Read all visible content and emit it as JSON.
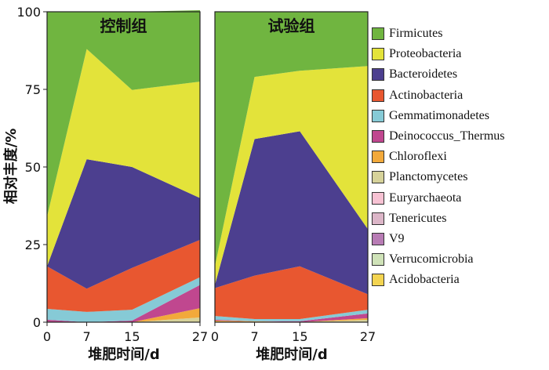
{
  "chart_data": {
    "type": "area",
    "stacked": true,
    "ylabel": "相对丰度/%",
    "ylim": [
      0,
      100
    ],
    "yticks": [
      0,
      25,
      50,
      75,
      100
    ],
    "x": [
      0,
      7,
      15,
      27
    ],
    "xticks": [
      "0",
      "7",
      "15",
      "27"
    ],
    "xlabel": "堆肥时间/d",
    "legend_position": "right",
    "grid": false,
    "series_names": [
      "Firmicutes",
      "Proteobacteria",
      "Bacteroidetes",
      "Actinobacteria",
      "Gemmatimonadetes",
      "Deinococcus_Thermus",
      "Chloroflexi",
      "Planctomycetes",
      "Euryarchaeota",
      "Tenericutes",
      "V9",
      "Verrucomicrobia",
      "Acidobacteria"
    ],
    "colors": {
      "Firmicutes": "#70b540",
      "Proteobacteria": "#e3e33a",
      "Bacteroidetes": "#4c3f8f",
      "Actinobacteria": "#e85730",
      "Gemmatimonadetes": "#86cad6",
      "Deinococcus_Thermus": "#c0478f",
      "Chloroflexi": "#f2a93b",
      "Planctomycetes": "#d6d29a",
      "Euryarchaeota": "#f7c2d3",
      "Tenericutes": "#dcb6c8",
      "V9": "#b87cb5",
      "Verrucomicrobia": "#cfe2b8",
      "Acidobacteria": "#f3d451"
    },
    "panels": [
      {
        "title": "控制组",
        "series": [
          {
            "name": "Acidobacteria",
            "values": [
              0,
              0,
              0,
              0
            ]
          },
          {
            "name": "Verrucomicrobia",
            "values": [
              0,
              0,
              0,
              0
            ]
          },
          {
            "name": "V9",
            "values": [
              0,
              0,
              0,
              0
            ]
          },
          {
            "name": "Tenericutes",
            "values": [
              0,
              0,
              0,
              0
            ]
          },
          {
            "name": "Euryarchaeota",
            "values": [
              0,
              0,
              0,
              0
            ]
          },
          {
            "name": "Planctomycetes",
            "values": [
              0,
              0,
              0,
              1.5
            ]
          },
          {
            "name": "Chloroflexi",
            "values": [
              0,
              0,
              0,
              3
            ]
          },
          {
            "name": "Deinococcus_Thermus",
            "values": [
              0.8,
              0,
              0.5,
              7.5
            ]
          },
          {
            "name": "Gemmatimonadetes",
            "values": [
              3.5,
              3.3,
              3.5,
              2.5
            ]
          },
          {
            "name": "Actinobacteria",
            "values": [
              13.7,
              7.5,
              13.5,
              12
            ]
          },
          {
            "name": "Bacteroidetes",
            "values": [
              0,
              41.7,
              32.5,
              13.5
            ]
          },
          {
            "name": "Proteobacteria",
            "values": [
              16,
              35.5,
              24.8,
              37.5
            ]
          },
          {
            "name": "Firmicutes",
            "values": [
              66,
              12,
              25.2,
              23
            ]
          }
        ]
      },
      {
        "title": "试验组",
        "series": [
          {
            "name": "Acidobacteria",
            "values": [
              0,
              0,
              0,
              0
            ]
          },
          {
            "name": "Verrucomicrobia",
            "values": [
              0,
              0,
              0,
              0
            ]
          },
          {
            "name": "V9",
            "values": [
              0,
              0,
              0,
              0
            ]
          },
          {
            "name": "Tenericutes",
            "values": [
              0,
              0,
              0,
              0
            ]
          },
          {
            "name": "Euryarchaeota",
            "values": [
              0,
              0,
              0,
              0
            ]
          },
          {
            "name": "Planctomycetes",
            "values": [
              0,
              0,
              0,
              0.8
            ]
          },
          {
            "name": "Chloroflexi",
            "values": [
              0.5,
              0.3,
              0,
              0.5
            ]
          },
          {
            "name": "Deinococcus_Thermus",
            "values": [
              0.3,
              0,
              0.3,
              1.5
            ]
          },
          {
            "name": "Gemmatimonadetes",
            "values": [
              1.2,
              0.7,
              0.7,
              1.2
            ]
          },
          {
            "name": "Actinobacteria",
            "values": [
              9,
              14,
              17,
              5
            ]
          },
          {
            "name": "Bacteroidetes",
            "values": [
              1,
              44,
              43.5,
              21
            ]
          },
          {
            "name": "Proteobacteria",
            "values": [
              6,
              20,
              19.5,
              52.5
            ]
          },
          {
            "name": "Firmicutes",
            "values": [
              82,
              21,
              19,
              17.5
            ]
          }
        ]
      }
    ]
  }
}
